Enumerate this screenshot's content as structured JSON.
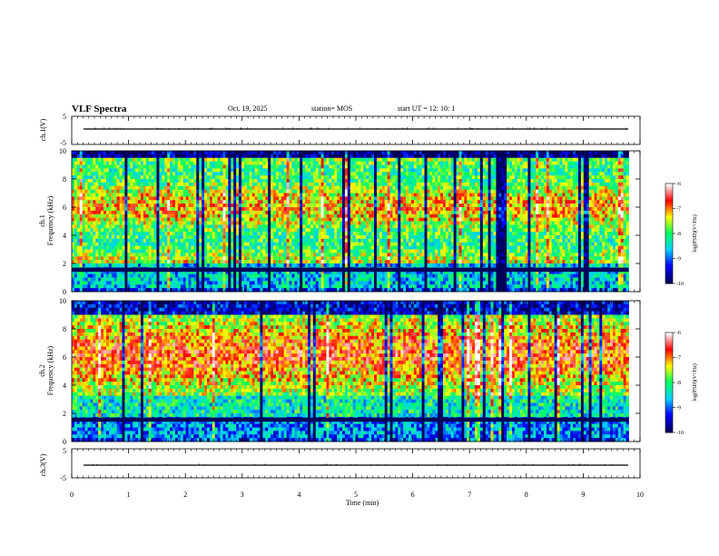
{
  "header": {
    "title": "VLF Spectra",
    "date": "Oct. 19, 2025",
    "station": "station= MOS",
    "start_ut": "start  UT =   12: 10: 1"
  },
  "panels": {
    "ch1_wave": {
      "ylabel": "ch.1(V)",
      "yticks": [
        "5",
        "-5"
      ]
    },
    "ch1_spec": {
      "ylabel_top": "ch.1",
      "ylabel_bottom": "Frequency (kHz)",
      "yticks": [
        "10",
        "8",
        "6",
        "4",
        "2",
        "0"
      ]
    },
    "ch2_spec": {
      "ylabel_top": "ch.2",
      "ylabel_bottom": "Frequency (kHz)",
      "yticks": [
        "10",
        "8",
        "6",
        "4",
        "2",
        "0"
      ]
    },
    "ch3_wave": {
      "ylabel": "ch.3(V)",
      "yticks": [
        "5",
        "-5"
      ]
    }
  },
  "colorbars": {
    "ticks": [
      "-6",
      "-7",
      "-8",
      "-9",
      "-10"
    ],
    "label": "log(PSD)(V²/Hz)",
    "colors": [
      "#00005a",
      "#0000ff",
      "#00d0ff",
      "#00ff60",
      "#ffff00",
      "#ff0000",
      "#ffffff"
    ]
  },
  "xaxis": {
    "label": "Time (min)",
    "ticks": [
      "0",
      "1",
      "2",
      "3",
      "4",
      "5",
      "6",
      "7",
      "8",
      "9",
      "10"
    ]
  },
  "chart_data": {
    "type": "heatmap",
    "title": "VLF Spectra",
    "xlabel": "Time (min)",
    "xlim": [
      0,
      10
    ],
    "data_end_min": 9.8,
    "panels": [
      {
        "name": "ch.1(V)",
        "kind": "waveform",
        "ylim": [
          -5,
          5
        ],
        "level": 0
      },
      {
        "name": "ch.1",
        "kind": "spectrogram",
        "ylabel": "Frequency (kHz)",
        "ylim": [
          0,
          10
        ],
        "colorbar_range": [
          -10,
          -6
        ]
      },
      {
        "name": "ch.2",
        "kind": "spectrogram",
        "ylabel": "Frequency (kHz)",
        "ylim": [
          0,
          10
        ],
        "colorbar_range": [
          -10,
          -6
        ]
      },
      {
        "name": "ch.3(V)",
        "kind": "waveform",
        "ylim": [
          -5,
          5
        ],
        "level": 0
      }
    ]
  }
}
